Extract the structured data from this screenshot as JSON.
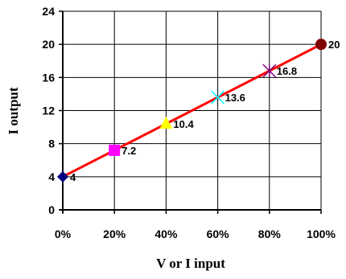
{
  "chart_data": {
    "type": "line",
    "xlabel": "V or I input",
    "ylabel": "I output",
    "xlim": [
      0,
      100
    ],
    "ylim": [
      0,
      24
    ],
    "x_ticks": [
      0,
      20,
      40,
      60,
      80,
      100
    ],
    "x_tick_labels": [
      "0%",
      "20%",
      "40%",
      "60%",
      "80%",
      "100%"
    ],
    "y_ticks": [
      0,
      4,
      8,
      12,
      16,
      20,
      24
    ],
    "y_tick_labels": [
      "0",
      "4",
      "8",
      "12",
      "16",
      "20",
      "24"
    ],
    "grid": true,
    "line": {
      "x": [
        0,
        100
      ],
      "y": [
        4,
        20
      ],
      "color": "#ff0000"
    },
    "points": [
      {
        "x": 0,
        "y": 4,
        "label": "4",
        "marker": "diamond",
        "color": "#000080"
      },
      {
        "x": 20,
        "y": 7.2,
        "label": "7.2",
        "marker": "square",
        "color": "#ff00ff"
      },
      {
        "x": 40,
        "y": 10.4,
        "label": "10.4",
        "marker": "triangle",
        "color": "#ffff00"
      },
      {
        "x": 60,
        "y": 13.6,
        "label": "13.6",
        "marker": "x",
        "color": "#00ffff"
      },
      {
        "x": 80,
        "y": 16.8,
        "label": "16.8",
        "marker": "star",
        "color": "#800080"
      },
      {
        "x": 100,
        "y": 20,
        "label": "20",
        "marker": "circle",
        "color": "#800000"
      }
    ]
  }
}
